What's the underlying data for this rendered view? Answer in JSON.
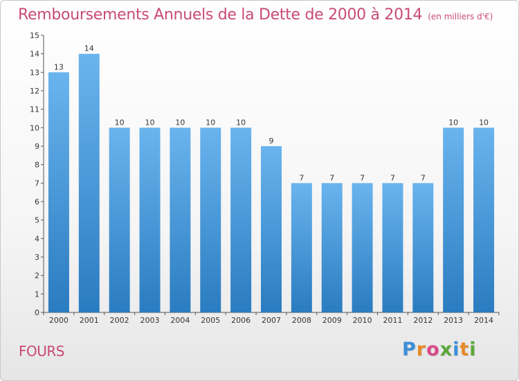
{
  "header": {
    "title": "Remboursements Annuels de la Dette de 2000 à 2014",
    "unit": "(en milliers d'€)"
  },
  "footer": {
    "commune": "FOURS",
    "logo_letters": [
      "P",
      "r",
      "o",
      "x",
      "i",
      "t",
      "i"
    ],
    "logo_colors": [
      "#3a8fd8",
      "#e8892a",
      "#d94a8a",
      "#5aa83a",
      "#3a8fd8",
      "#e8892a",
      "#5aa83a"
    ]
  },
  "chart_data": {
    "type": "bar",
    "title": "Remboursements Annuels de la Dette de 2000 à 2014",
    "xlabel": "",
    "ylabel": "",
    "categories": [
      "2000",
      "2001",
      "2002",
      "2003",
      "2004",
      "2005",
      "2006",
      "2007",
      "2008",
      "2009",
      "2010",
      "2011",
      "2012",
      "2013",
      "2014"
    ],
    "values": [
      13,
      14,
      10,
      10,
      10,
      10,
      10,
      9,
      7,
      7,
      7,
      7,
      7,
      10,
      10
    ],
    "value_labels": [
      "13",
      "14",
      "10",
      "10",
      "10",
      "10",
      "10",
      "9",
      "7",
      "7",
      "7",
      "7",
      "7",
      "10",
      "10"
    ],
    "ylim": [
      0,
      15
    ],
    "yticks": [
      "0",
      "1",
      "2",
      "3",
      "4",
      "5",
      "6",
      "7",
      "8",
      "9",
      "10",
      "11",
      "12",
      "13",
      "14",
      "15"
    ],
    "grid": false,
    "legend": "none",
    "bar_color_top": "#6ab4ee",
    "bar_color_bottom": "#2a7cc0"
  }
}
